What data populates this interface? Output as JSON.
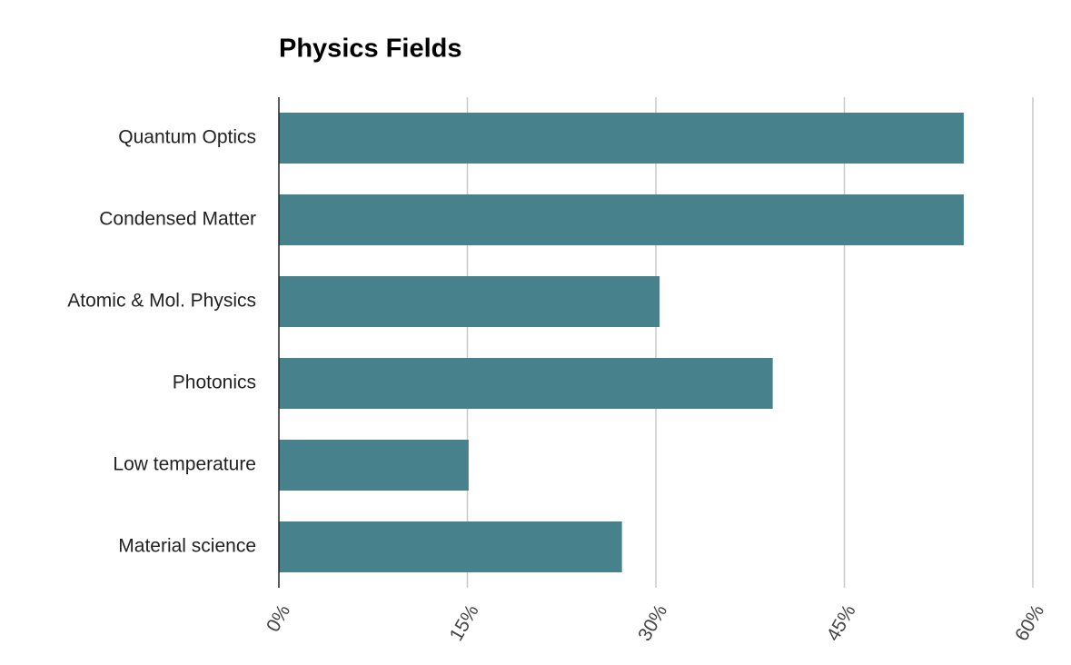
{
  "chart_data": {
    "type": "bar",
    "orientation": "horizontal",
    "title": "Physics Fields",
    "categories": [
      "Quantum Optics",
      "Condensed Matter",
      "Atomic & Mol. Physics",
      "Photonics",
      "Low temperature",
      "Material science"
    ],
    "values": [
      54.5,
      54.5,
      30.3,
      39.3,
      15.1,
      27.3
    ],
    "color": "#46818c",
    "xlim": [
      0,
      60
    ],
    "xticks": [
      {
        "value": 0,
        "label": "0%"
      },
      {
        "value": 15,
        "label": "15%"
      },
      {
        "value": 30,
        "label": "30%"
      },
      {
        "value": 45,
        "label": "45%"
      },
      {
        "value": 60,
        "label": "60%"
      }
    ],
    "grid": true
  }
}
